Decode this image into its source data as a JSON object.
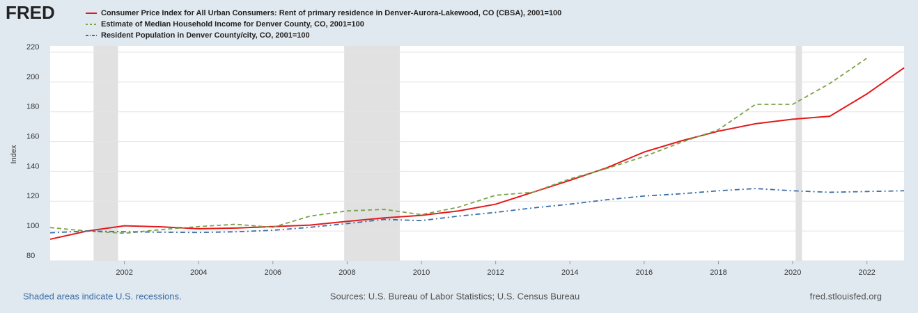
{
  "chart_data": {
    "type": "line",
    "logo": "FRED",
    "y_label": "Index",
    "note": "Shaded areas indicate U.S. recessions.",
    "source": "Sources: U.S. Bureau of Labor Statistics; U.S. Census Bureau",
    "website": "fred.stlouisfed.org",
    "x": [
      2000,
      2001,
      2002,
      2003,
      2004,
      2005,
      2006,
      2007,
      2008,
      2009,
      2010,
      2011,
      2012,
      2013,
      2014,
      2015,
      2016,
      2017,
      2018,
      2019,
      2020,
      2021,
      2022,
      2023
    ],
    "series": [
      {
        "name": "Consumer Price Index for All Urban Consumers: Rent of primary residence in Denver-Aurora-Lakewood, CO (CBSA), 2001=100",
        "color": "#e31a1c",
        "dash": "solid",
        "values": [
          94.5,
          100,
          103.5,
          102.8,
          101.5,
          102,
          103,
          104,
          106.5,
          108.8,
          110.5,
          113.5,
          118,
          126,
          134,
          142.5,
          153,
          160.5,
          167,
          172,
          175,
          177,
          192,
          209.5
        ]
      },
      {
        "name": "Estimate of Median Household Income for Denver County, CO, 2001=100",
        "color": "#7aa34a",
        "dash": "dashed",
        "values": [
          102.3,
          100,
          98.5,
          101,
          103,
          104.5,
          102.5,
          110,
          113.5,
          114.5,
          111,
          116,
          124,
          126,
          135,
          142,
          150,
          159.5,
          168,
          185,
          185,
          199,
          216,
          null
        ]
      },
      {
        "name": "Resident Population in Denver County/city, CO, 2001=100",
        "color": "#3a6ea8",
        "dash": "dashdot",
        "values": [
          98.8,
          100,
          99.5,
          99.2,
          99,
          99.5,
          100.5,
          102.5,
          105,
          107.8,
          107,
          110,
          112.5,
          115.5,
          118,
          121,
          123.5,
          125,
          127,
          128.5,
          127,
          126,
          126.5,
          127
        ]
      }
    ],
    "recessions": [
      [
        2001.17,
        2001.83
      ],
      [
        2007.92,
        2009.42
      ],
      [
        2020.08,
        2020.25
      ]
    ],
    "xlim": [
      2000,
      2023
    ],
    "xticks": [
      2002,
      2004,
      2006,
      2008,
      2010,
      2012,
      2014,
      2016,
      2018,
      2020,
      2022
    ],
    "ylim": [
      80,
      220
    ],
    "yticks": [
      80,
      100,
      120,
      140,
      160,
      180,
      200,
      220
    ],
    "grid": true
  }
}
